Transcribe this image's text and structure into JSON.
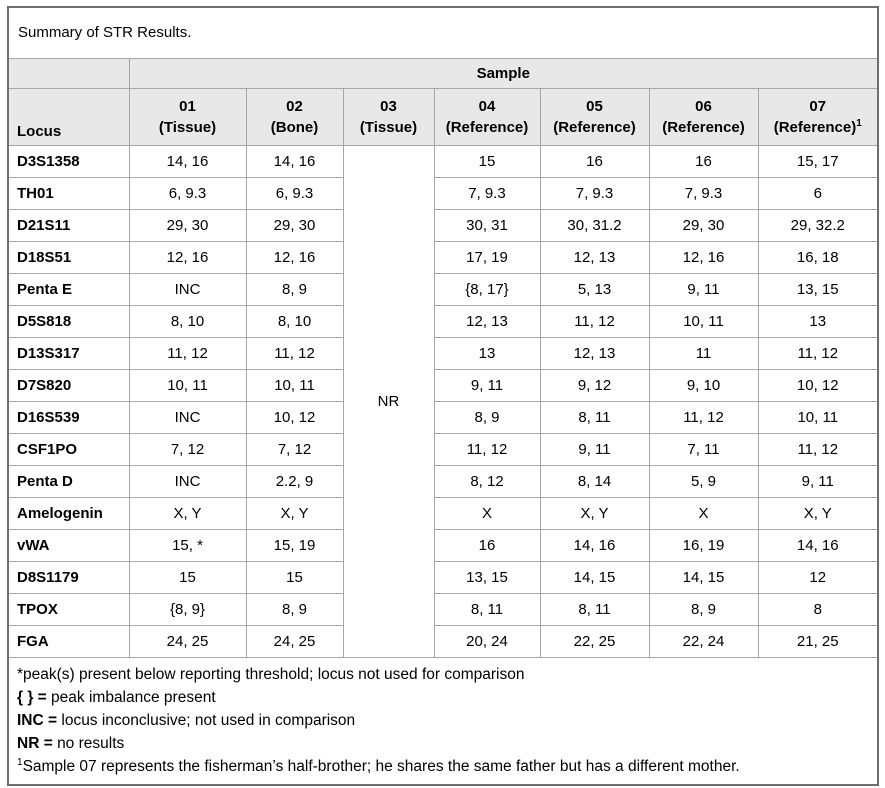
{
  "title": "Summary of STR Results.",
  "table": {
    "sample_header": "Sample",
    "locus_header": "Locus",
    "columns": [
      {
        "label": "01",
        "sub": "(Tissue)",
        "sup": ""
      },
      {
        "label": "02",
        "sub": "(Bone)",
        "sup": ""
      },
      {
        "label": "03",
        "sub": "(Tissue)",
        "sup": ""
      },
      {
        "label": "04",
        "sub": "(Reference)",
        "sup": ""
      },
      {
        "label": "05",
        "sub": "(Reference)",
        "sup": ""
      },
      {
        "label": "06",
        "sub": "(Reference)",
        "sup": ""
      },
      {
        "label": "07",
        "sub": "(Reference)",
        "sup": "1"
      }
    ],
    "nr_value": "NR",
    "rows": [
      {
        "locus": "D3S1358",
        "c01": "14, 16",
        "c02": "14, 16",
        "c04": "15",
        "c05": "16",
        "c06": "16",
        "c07": "15, 17"
      },
      {
        "locus": "TH01",
        "c01": "6, 9.3",
        "c02": "6, 9.3",
        "c04": "7, 9.3",
        "c05": "7, 9.3",
        "c06": "7, 9.3",
        "c07": "6"
      },
      {
        "locus": "D21S11",
        "c01": "29, 30",
        "c02": "29, 30",
        "c04": "30, 31",
        "c05": "30, 31.2",
        "c06": "29, 30",
        "c07": "29, 32.2"
      },
      {
        "locus": "D18S51",
        "c01": "12, 16",
        "c02": "12, 16",
        "c04": "17, 19",
        "c05": "12, 13",
        "c06": "12, 16",
        "c07": "16, 18"
      },
      {
        "locus": "Penta E",
        "c01": "INC",
        "c02": "8, 9",
        "c04": "{8, 17}",
        "c05": "5, 13",
        "c06": "9, 11",
        "c07": "13, 15"
      },
      {
        "locus": "D5S818",
        "c01": "8, 10",
        "c02": "8, 10",
        "c04": "12, 13",
        "c05": "11, 12",
        "c06": "10, 11",
        "c07": "13"
      },
      {
        "locus": "D13S317",
        "c01": "11, 12",
        "c02": "11, 12",
        "c04": "13",
        "c05": "12, 13",
        "c06": "11",
        "c07": "11, 12"
      },
      {
        "locus": "D7S820",
        "c01": "10, 11",
        "c02": "10, 11",
        "c04": "9, 11",
        "c05": "9, 12",
        "c06": "9, 10",
        "c07": "10, 12"
      },
      {
        "locus": "D16S539",
        "c01": "INC",
        "c02": "10, 12",
        "c04": "8, 9",
        "c05": "8, 11",
        "c06": "11, 12",
        "c07": "10, 11"
      },
      {
        "locus": "CSF1PO",
        "c01": "7, 12",
        "c02": "7, 12",
        "c04": "11, 12",
        "c05": "9, 11",
        "c06": "7, 11",
        "c07": "11, 12"
      },
      {
        "locus": "Penta D",
        "c01": "INC",
        "c02": "2.2, 9",
        "c04": "8, 12",
        "c05": "8, 14",
        "c06": "5, 9",
        "c07": "9, 11"
      },
      {
        "locus": "Amelogenin",
        "c01": "X, Y",
        "c02": "X, Y",
        "c04": "X",
        "c05": "X, Y",
        "c06": "X",
        "c07": "X, Y"
      },
      {
        "locus": "vWA",
        "c01": "15, *",
        "c02": "15, 19",
        "c04": "16",
        "c05": "14, 16",
        "c06": "16, 19",
        "c07": "14, 16"
      },
      {
        "locus": "D8S1179",
        "c01": "15",
        "c02": "15",
        "c04": "13, 15",
        "c05": "14, 15",
        "c06": "14, 15",
        "c07": "12"
      },
      {
        "locus": "TPOX",
        "c01": "{8, 9}",
        "c02": "8, 9",
        "c04": "8, 11",
        "c05": "8, 11",
        "c06": "8, 9",
        "c07": "8"
      },
      {
        "locus": "FGA",
        "c01": "24, 25",
        "c02": "24, 25",
        "c04": "20, 24",
        "c05": "22, 25",
        "c06": "22, 24",
        "c07": "21, 25"
      }
    ]
  },
  "footnotes": [
    {
      "sup": "",
      "bold": "",
      "text": "*peak(s) present below reporting threshold; locus not used for comparison"
    },
    {
      "sup": "",
      "bold": "{ } =",
      "text": "peak imbalance present"
    },
    {
      "sup": "",
      "bold": "INC =",
      "text": "locus inconclusive; not used in comparison"
    },
    {
      "sup": "",
      "bold": "NR =",
      "text": "no results"
    },
    {
      "sup": "1",
      "bold": "",
      "text": "Sample 07 represents the fisherman’s half-brother; he shares the same father but has a different mother."
    }
  ],
  "colors": {
    "header_bg": "#e8e8e8",
    "inner_border": "#a6a6a6",
    "outer_border": "#6f6f6f",
    "text": "#000000"
  }
}
